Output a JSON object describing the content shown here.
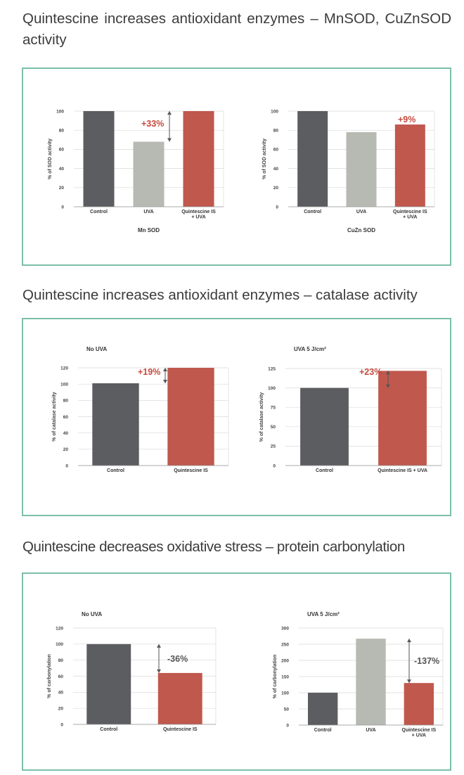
{
  "headings": [
    "Quintescine increases antioxidant enzymes – MnSOD, CuZnSOD activity",
    "Quintescine increases antioxidant enzymes – catalase activity",
    "Quintescine decreases oxidative stress – protein carbonylation"
  ],
  "colors": {
    "panel_border": "#7cbfa9",
    "control_bar": "#5c5d60",
    "uva_bar": "#b7b9b3",
    "quintescine_bar": "#c0584d",
    "annotation_red": "#c44a3d",
    "annotation_gray": "#555555"
  },
  "chart_data": [
    {
      "type": "bar",
      "title": "",
      "subtitle": "Mn SOD",
      "ylabel": "% of SOD activity",
      "categories": [
        "Control",
        "UVA",
        "Quintescine IS\n+ UVA"
      ],
      "values": [
        100,
        68,
        100
      ],
      "bar_colors": [
        "#5c5d60",
        "#b7b9b3",
        "#c0584d"
      ],
      "ylim": [
        0,
        100
      ],
      "yticks": [
        "0",
        "20",
        "40",
        "60",
        "80",
        "100"
      ],
      "annotation": {
        "text": "+33%",
        "color": "red",
        "from": 68,
        "to": 100
      }
    },
    {
      "type": "bar",
      "title": "",
      "subtitle": "CuZn SOD",
      "ylabel": "% of SOD activity",
      "categories": [
        "Control",
        "UVA",
        "Quintescine IS\n+ UVA"
      ],
      "values": [
        100,
        78,
        86
      ],
      "bar_colors": [
        "#5c5d60",
        "#b7b9b3",
        "#c0584d"
      ],
      "ylim": [
        0,
        100
      ],
      "yticks": [
        "0",
        "20",
        "40",
        "60",
        "80",
        "100"
      ],
      "annotation": {
        "text": "+9%",
        "color": "red",
        "from": null,
        "to": null
      }
    },
    {
      "type": "bar",
      "title": "No UVA",
      "subtitle": "",
      "ylabel": "% of catalase activity",
      "categories": [
        "Control",
        "Quintescine IS"
      ],
      "values": [
        101,
        120
      ],
      "bar_colors": [
        "#5c5d60",
        "#c0584d"
      ],
      "ylim": [
        0,
        120
      ],
      "yticks": [
        "0",
        "20",
        "40",
        "60",
        "80",
        "100",
        "120"
      ],
      "annotation": {
        "text": "+19%",
        "color": "red",
        "from": 101,
        "to": 120
      }
    },
    {
      "type": "bar",
      "title": "UVA 5 J/cm²",
      "subtitle": "",
      "ylabel": "% of catalase activity",
      "categories": [
        "Control",
        "Quintescine IS + UVA"
      ],
      "values": [
        100,
        122
      ],
      "bar_colors": [
        "#5c5d60",
        "#c0584d"
      ],
      "ylim": [
        0,
        125
      ],
      "yticks": [
        "0",
        "25",
        "50",
        "75",
        "100",
        "125"
      ],
      "annotation": {
        "text": "+23%",
        "color": "red",
        "from": 100,
        "to": 122
      }
    },
    {
      "type": "bar",
      "title": "No UVA",
      "subtitle": "",
      "ylabel": "% of carbonylation",
      "categories": [
        "Control",
        "Quintescine IS"
      ],
      "values": [
        100,
        64
      ],
      "bar_colors": [
        "#5c5d60",
        "#c0584d"
      ],
      "ylim": [
        0,
        120
      ],
      "yticks": [
        "0",
        "20",
        "40",
        "60",
        "80",
        "100",
        "120"
      ],
      "annotation": {
        "text": "-36%",
        "color": "gray",
        "from": 100,
        "to": 64
      }
    },
    {
      "type": "bar",
      "title": "UVA 5 J/cm²",
      "subtitle": "",
      "ylabel": "% of carbonylation",
      "categories": [
        "Control",
        "UVA",
        "Quintescine IS\n+ UVA"
      ],
      "values": [
        100,
        267,
        130
      ],
      "bar_colors": [
        "#5c5d60",
        "#b7b9b3",
        "#c0584d"
      ],
      "ylim": [
        0,
        300
      ],
      "yticks": [
        "0",
        "50",
        "100",
        "150",
        "200",
        "250",
        "300"
      ],
      "annotation": {
        "text": "-137%",
        "color": "gray",
        "from": 267,
        "to": 130
      }
    }
  ]
}
